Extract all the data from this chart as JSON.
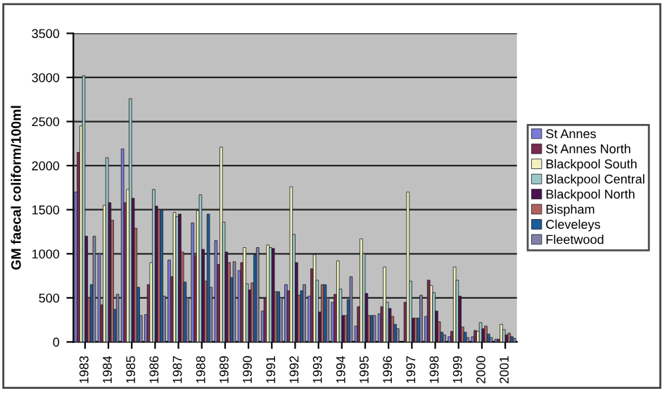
{
  "chart_data": {
    "type": "bar",
    "ylabel": "GM faecal coliform/100ml",
    "categories": [
      "1983",
      "1984",
      "1985",
      "1986",
      "1987",
      "1988",
      "1989",
      "1990",
      "1991",
      "1992",
      "1993",
      "1994",
      "1995",
      "1996",
      "1997",
      "1998",
      "1999",
      "2000",
      "2001"
    ],
    "series": [
      {
        "name": "St Annes",
        "color": "#7b7bd8",
        "values": [
          1700,
          1000,
          2190,
          310,
          930,
          1350,
          1150,
          810,
          350,
          650,
          520,
          450,
          180,
          320,
          null,
          290,
          60,
          60,
          30
        ]
      },
      {
        "name": "St Annes North",
        "color": "#7a2a50",
        "values": [
          2150,
          420,
          1580,
          650,
          740,
          980,
          880,
          900,
          500,
          580,
          830,
          540,
          400,
          400,
          450,
          700,
          120,
          130,
          30
        ]
      },
      {
        "name": "Blackpool South",
        "color": "#f2f2c0",
        "values": [
          2450,
          1550,
          1730,
          900,
          1470,
          1490,
          2210,
          1070,
          1100,
          1760,
          990,
          920,
          1170,
          850,
          1700,
          640,
          850,
          120,
          200
        ]
      },
      {
        "name": "Blackpool Central",
        "color": "#9cc8c8",
        "values": [
          3020,
          2090,
          2760,
          1730,
          1420,
          1670,
          1360,
          660,
          1070,
          1220,
          700,
          600,
          1000,
          450,
          690,
          560,
          700,
          220,
          140
        ]
      },
      {
        "name": "Blackpool North",
        "color": "#4a1050",
        "values": [
          1200,
          1580,
          1630,
          1540,
          1450,
          1050,
          1020,
          590,
          1060,
          900,
          340,
          300,
          550,
          380,
          270,
          350,
          520,
          150,
          80
        ]
      },
      {
        "name": "Bispham",
        "color": "#b06060",
        "values": [
          500,
          1380,
          1290,
          1500,
          1020,
          690,
          900,
          670,
          570,
          530,
          650,
          300,
          300,
          290,
          270,
          230,
          170,
          180,
          100
        ]
      },
      {
        "name": "Cleveleys",
        "color": "#1a5c9a",
        "values": [
          650,
          370,
          620,
          1500,
          680,
          1450,
          730,
          990,
          570,
          580,
          650,
          480,
          300,
          200,
          270,
          110,
          110,
          90,
          60
        ]
      },
      {
        "name": "Fleetwood",
        "color": "#8080a8",
        "values": [
          1200,
          540,
          300,
          520,
          500,
          620,
          910,
          1070,
          500,
          650,
          500,
          740,
          300,
          150,
          530,
          80,
          50,
          50,
          40
        ]
      }
    ],
    "ylim": [
      0,
      3500
    ],
    "yticks": [
      0,
      500,
      1000,
      1500,
      2000,
      2500,
      3000,
      3500
    ],
    "grid": "y",
    "legend": "right"
  }
}
